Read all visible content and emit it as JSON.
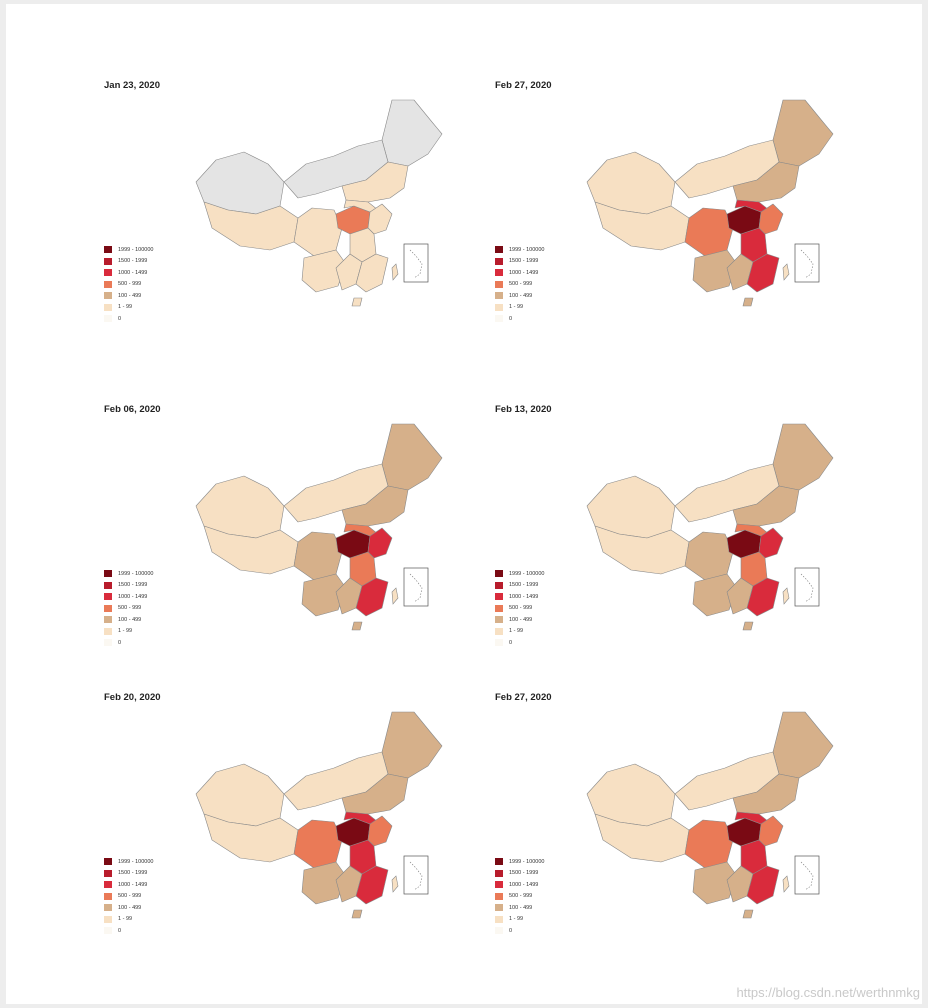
{
  "legend": {
    "labels": [
      "1999 - 100000",
      "1500 - 1999",
      "1000 - 1499",
      "500 - 999",
      "100 - 499",
      "1 - 99",
      "0"
    ],
    "colors": [
      "#7a0a14",
      "#b81c2c",
      "#d92b3c",
      "#ea7a57",
      "#d6b08a",
      "#f7e0c3",
      "#fbf8f2"
    ]
  },
  "panels": [
    {
      "title": "Jan 23, 2020",
      "fills": [
        "#e4e4e4",
        "#f7e0c3",
        "#e4e4e4",
        "#e4e4e4",
        "#f7e0c3",
        "#f7e0c3",
        "#f7e0c3",
        "#ea7a57",
        "#f7e0c3",
        "#f7e0c3",
        "#f7e0c3",
        "#f7e0c3",
        "#f7e0c3",
        "#f7e0c3"
      ]
    },
    {
      "title": "Feb 27, 2020",
      "fills": [
        "#f7e0c3",
        "#f7e0c3",
        "#d6b08a",
        "#f7e0c3",
        "#d6b08a",
        "#ea7a57",
        "#d6b08a",
        "#7a0a14",
        "#d92b3c",
        "#ea7a57",
        "#d92b3c",
        "#d6b08a",
        "#d92b3c",
        "#d6b08a"
      ]
    },
    {
      "title": "Feb 06, 2020",
      "fills": [
        "#f7e0c3",
        "#f7e0c3",
        "#d6b08a",
        "#f7e0c3",
        "#d6b08a",
        "#d6b08a",
        "#d6b08a",
        "#7a0a14",
        "#ea7a57",
        "#d92b3c",
        "#ea7a57",
        "#d6b08a",
        "#d92b3c",
        "#d6b08a"
      ]
    },
    {
      "title": "Feb 13, 2020",
      "fills": [
        "#f7e0c3",
        "#f7e0c3",
        "#d6b08a",
        "#f7e0c3",
        "#d6b08a",
        "#d6b08a",
        "#d6b08a",
        "#7a0a14",
        "#ea7a57",
        "#d92b3c",
        "#ea7a57",
        "#d6b08a",
        "#d92b3c",
        "#d6b08a"
      ]
    },
    {
      "title": "Feb 20, 2020",
      "fills": [
        "#f7e0c3",
        "#f7e0c3",
        "#d6b08a",
        "#f7e0c3",
        "#d6b08a",
        "#ea7a57",
        "#d6b08a",
        "#7a0a14",
        "#d92b3c",
        "#ea7a57",
        "#d92b3c",
        "#d6b08a",
        "#d92b3c",
        "#d6b08a"
      ]
    },
    {
      "title": "Feb 27, 2020",
      "fills": [
        "#f7e0c3",
        "#f7e0c3",
        "#d6b08a",
        "#f7e0c3",
        "#d6b08a",
        "#ea7a57",
        "#d6b08a",
        "#7a0a14",
        "#d92b3c",
        "#ea7a57",
        "#d92b3c",
        "#d6b08a",
        "#d92b3c",
        "#d6b08a"
      ]
    }
  ],
  "watermark": "https://blog.csdn.net/werthnmkg"
}
